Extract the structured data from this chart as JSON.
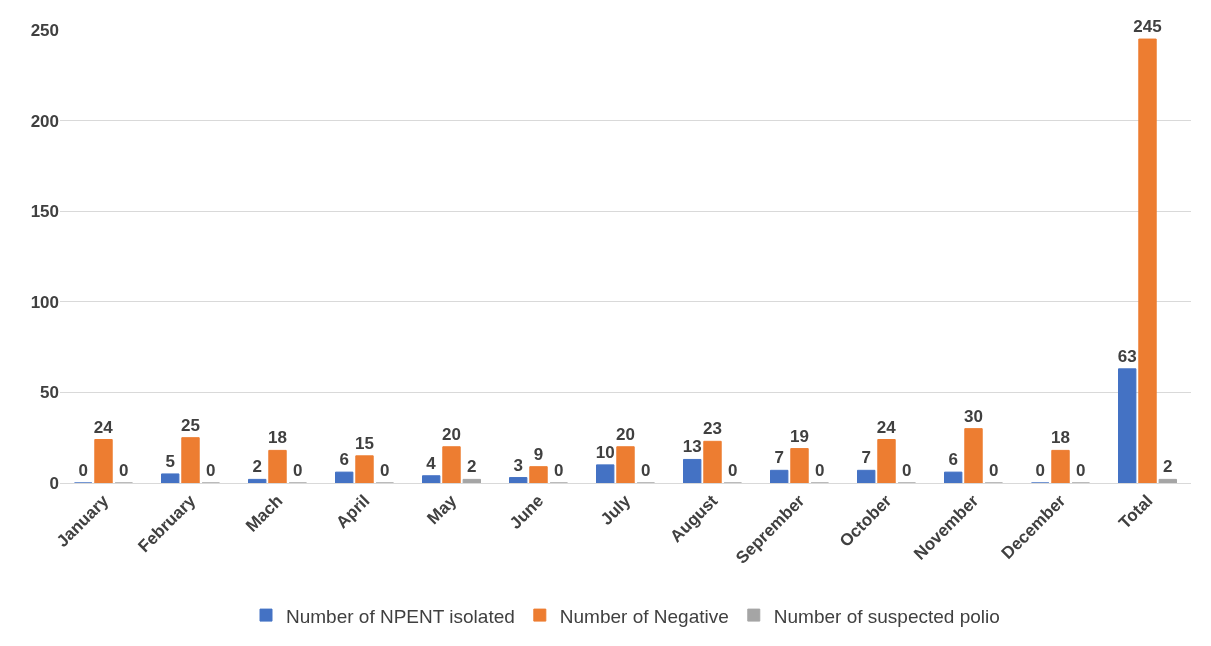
{
  "chart_data": {
    "type": "bar",
    "categories": [
      "January",
      "February",
      "Mach",
      "April",
      "May",
      "June",
      "July",
      "August",
      "Seprember",
      "October",
      "November",
      "December",
      "Total"
    ],
    "series": [
      {
        "name": "Number of NPENT isolated",
        "color": "#4472c4",
        "values": [
          0,
          5,
          2,
          6,
          4,
          3,
          10,
          13,
          7,
          7,
          6,
          0,
          63
        ]
      },
      {
        "name": "Number of Negative",
        "color": "#ed7d31",
        "values": [
          24,
          25,
          18,
          15,
          20,
          9,
          20,
          23,
          19,
          24,
          30,
          18,
          245
        ]
      },
      {
        "name": "Number of suspected polio",
        "color": "#a5a5a5",
        "values": [
          0,
          0,
          0,
          0,
          2,
          0,
          0,
          0,
          0,
          0,
          0,
          0,
          2
        ]
      }
    ],
    "ylim": [
      0,
      250
    ],
    "yticks": [
      0,
      50,
      100,
      150,
      200,
      250
    ],
    "grid": "y",
    "legend": "bottom",
    "data_labels": true
  }
}
